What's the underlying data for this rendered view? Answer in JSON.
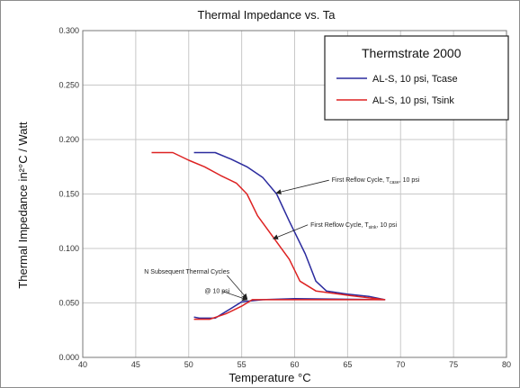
{
  "chart_data": {
    "type": "line",
    "title": "Thermal Impedance vs. Ta",
    "xlabel": "Temperature °C",
    "ylabel": "Thermal Impedance   in²°C / Watt",
    "xlim": [
      40,
      80
    ],
    "ylim": [
      0.0,
      0.3
    ],
    "x_ticks": [
      "40",
      "45",
      "50",
      "55",
      "60",
      "65",
      "70",
      "75",
      "80"
    ],
    "y_ticks": [
      "0.000",
      "0.050",
      "0.100",
      "0.150",
      "0.200",
      "0.250",
      "0.300"
    ],
    "grid": true,
    "legend": {
      "title": "Thermstrate 2000",
      "placement": "top-right"
    },
    "series": [
      {
        "name": "AL-S, 10 psi, Tcase",
        "color": "#2b2b9e",
        "points": [
          [
            50.5,
            0.188
          ],
          [
            52.5,
            0.188
          ],
          [
            54,
            0.182
          ],
          [
            55.5,
            0.175
          ],
          [
            57,
            0.165
          ],
          [
            58.3,
            0.15
          ],
          [
            59.5,
            0.125
          ],
          [
            61,
            0.095
          ],
          [
            62,
            0.07
          ],
          [
            63,
            0.061
          ],
          [
            65,
            0.058
          ],
          [
            67,
            0.056
          ],
          [
            68.5,
            0.053
          ],
          [
            60,
            0.054
          ],
          [
            57,
            0.053
          ],
          [
            55,
            0.051
          ],
          [
            53.5,
            0.042
          ],
          [
            52.5,
            0.036
          ],
          [
            51,
            0.036
          ],
          [
            50.5,
            0.037
          ]
        ]
      },
      {
        "name": "AL-S, 10 psi, Tsink",
        "color": "#dd2222",
        "points": [
          [
            46.5,
            0.188
          ],
          [
            48.5,
            0.188
          ],
          [
            50,
            0.181
          ],
          [
            51.5,
            0.175
          ],
          [
            53,
            0.167
          ],
          [
            54.5,
            0.16
          ],
          [
            55.5,
            0.15
          ],
          [
            56.5,
            0.13
          ],
          [
            58,
            0.11
          ],
          [
            59.5,
            0.09
          ],
          [
            60.5,
            0.07
          ],
          [
            62,
            0.061
          ],
          [
            65,
            0.057
          ],
          [
            68.5,
            0.053
          ],
          [
            62,
            0.053
          ],
          [
            58,
            0.053
          ],
          [
            56,
            0.053
          ],
          [
            55,
            0.047
          ],
          [
            53.5,
            0.04
          ],
          [
            52,
            0.035
          ],
          [
            50.5,
            0.035
          ]
        ]
      }
    ],
    "annotations": [
      {
        "text": "First Reflow Cycle, T",
        "sub": "case",
        "tail": ", 10 psi",
        "text_at": [
          63.5,
          0.161
        ],
        "arrow_to": [
          58.3,
          0.151
        ]
      },
      {
        "text": "First Reflow Cycle, T",
        "sub": "sink",
        "tail": ", 10 psi",
        "text_at": [
          61.5,
          0.12
        ],
        "arrow_to": [
          58,
          0.109
        ]
      },
      {
        "text": "N Subsequent Thermal Cycles",
        "sub": "",
        "tail": "",
        "text_at": [
          45.8,
          0.077
        ],
        "arrow_to": [
          55.5,
          0.054
        ]
      },
      {
        "text": "@ 10 psi",
        "sub": "",
        "tail": "",
        "text_at": [
          51.5,
          0.059
        ],
        "arrow_to": [
          55.5,
          0.053
        ]
      }
    ]
  }
}
